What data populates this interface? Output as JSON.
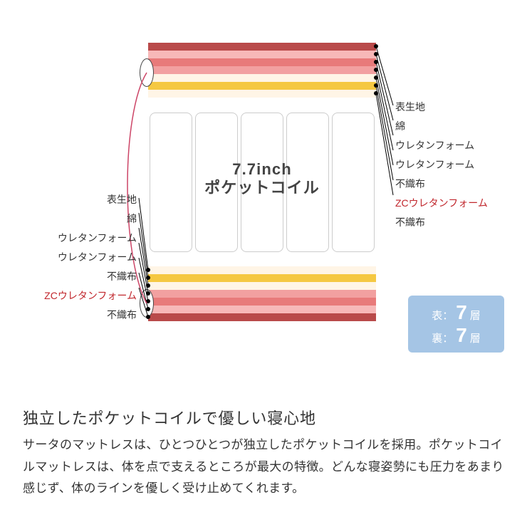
{
  "layers_top": [
    {
      "name": "表生地",
      "color": "#b94a4a"
    },
    {
      "name": "綿",
      "color": "#f7b8b8"
    },
    {
      "name": "ウレタンフォーム",
      "color": "#e87a7a"
    },
    {
      "name": "ウレタンフォーム",
      "color": "#f2a0a0"
    },
    {
      "name": "不織布",
      "color": "#fff5e6"
    },
    {
      "name": "ZCウレタンフォーム",
      "color": "#f5c842",
      "is_zc": true
    },
    {
      "name": "不織布",
      "color": "#fff5e6"
    }
  ],
  "layer_height": 11,
  "coil": {
    "label_line1": "7.7inch",
    "label_line2": "ポケットコイル",
    "count": 5
  },
  "badge": {
    "front_prefix": "表：",
    "back_prefix": "裏：",
    "layers": "7",
    "suffix": "層"
  },
  "heading": "独立したポケットコイルで優しい寝心地",
  "body": "サータのマットレスは、ひとつひとつが独立したポケットコイルを採用。ポケットコイルマットレスは、体を点で支えるところが最大の特徴。どんな寝姿勢にも圧力をあまり感じず、体のラインを優しく受け止めてくれます。",
  "label_fontsize": 14,
  "zc_color": "#c1272d"
}
